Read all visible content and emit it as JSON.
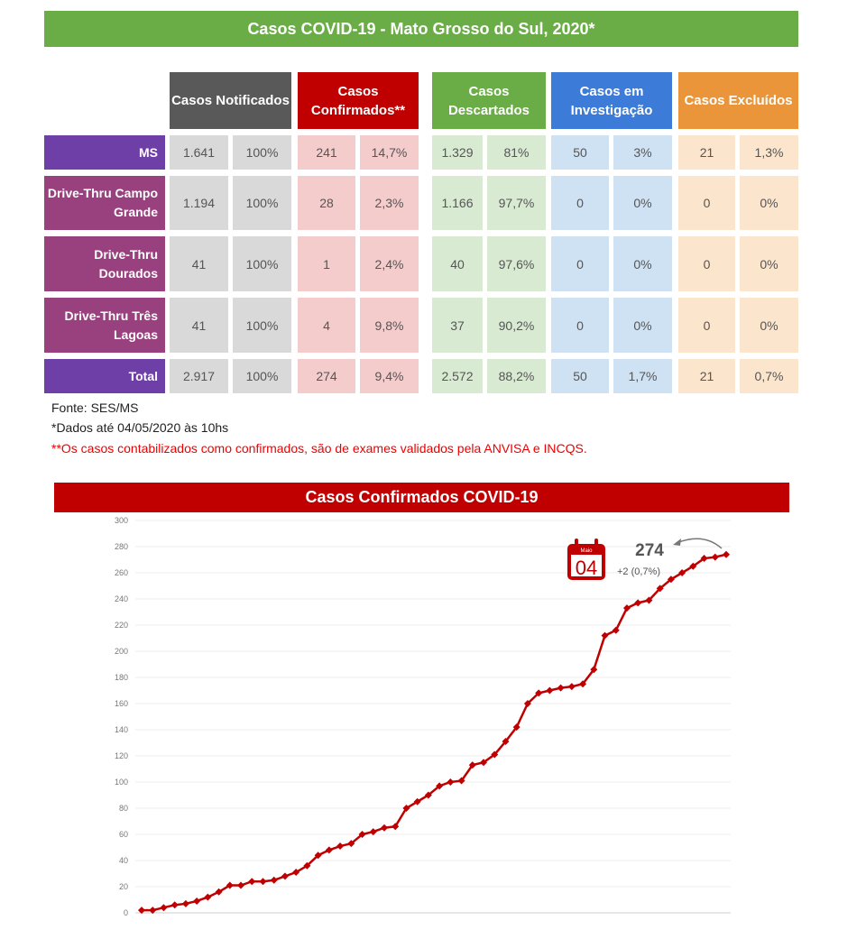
{
  "title": "Casos COVID-19 - Mato Grosso do Sul, 2020*",
  "table": {
    "headers": [
      {
        "label": "Casos Notificados",
        "color": "#595959",
        "cell": "#d9d9d9"
      },
      {
        "label": "Casos Confirmados**",
        "color": "#c00000",
        "cell": "#f4cccc"
      },
      {
        "label": "Casos Descartados",
        "color": "#6aac46",
        "cell": "#d9ead3"
      },
      {
        "label": "Casos em Investigação",
        "color": "#3d7bd9",
        "cell": "#cfe2f3"
      },
      {
        "label": "Casos Excluídos",
        "color": "#ea953a",
        "cell": "#fce5cd"
      }
    ],
    "rows": [
      {
        "label": "MS",
        "color": "#6f3fa8",
        "values": [
          "1.641",
          "100%",
          "241",
          "14,7%",
          "1.329",
          "81%",
          "50",
          "3%",
          "21",
          "1,3%"
        ]
      },
      {
        "label": "Drive-Thru Campo Grande",
        "color": "#99407f",
        "values": [
          "1.194",
          "100%",
          "28",
          "2,3%",
          "1.166",
          "97,7%",
          "0",
          "0%",
          "0",
          "0%"
        ]
      },
      {
        "label": "Drive-Thru Dourados",
        "color": "#99407f",
        "values": [
          "41",
          "100%",
          "1",
          "2,4%",
          "40",
          "97,6%",
          "0",
          "0%",
          "0",
          "0%"
        ]
      },
      {
        "label": "Drive-Thru Três Lagoas",
        "color": "#99407f",
        "values": [
          "41",
          "100%",
          "4",
          "9,8%",
          "37",
          "90,2%",
          "0",
          "0%",
          "0",
          "0%"
        ]
      },
      {
        "label": "Total",
        "color": "#6f3fa8",
        "values": [
          "2.917",
          "100%",
          "274",
          "9,4%",
          "2.572",
          "88,2%",
          "50",
          "1,7%",
          "21",
          "0,7%"
        ]
      }
    ]
  },
  "notes": {
    "source": "Fonte: SES/MS",
    "date": "*Dados até 04/05/2020 às 10hs",
    "footnote": "**Os casos contabilizados como confirmados, são de exames validados pela ANVISA e INCQS."
  },
  "chart_data": {
    "type": "line",
    "title": "Casos Confirmados COVID-19",
    "ylim": [
      0,
      300
    ],
    "yticks": [
      0,
      20,
      40,
      60,
      80,
      100,
      120,
      140,
      160,
      180,
      200,
      220,
      240,
      260,
      280,
      300
    ],
    "grid": true,
    "color": "#c00000",
    "values": [
      2,
      2,
      4,
      6,
      7,
      9,
      12,
      16,
      21,
      21,
      24,
      24,
      25,
      28,
      31,
      36,
      44,
      48,
      51,
      53,
      60,
      62,
      65,
      66,
      80,
      85,
      90,
      97,
      100,
      101,
      113,
      115,
      121,
      131,
      142,
      160,
      168,
      170,
      172,
      173,
      175,
      186,
      212,
      216,
      233,
      237,
      239,
      248,
      255,
      260,
      265,
      271,
      272,
      274
    ],
    "annotation": {
      "value": "274",
      "change": "+2 (0,7%)",
      "calendar_month": "Maio",
      "calendar_day": "04"
    }
  }
}
